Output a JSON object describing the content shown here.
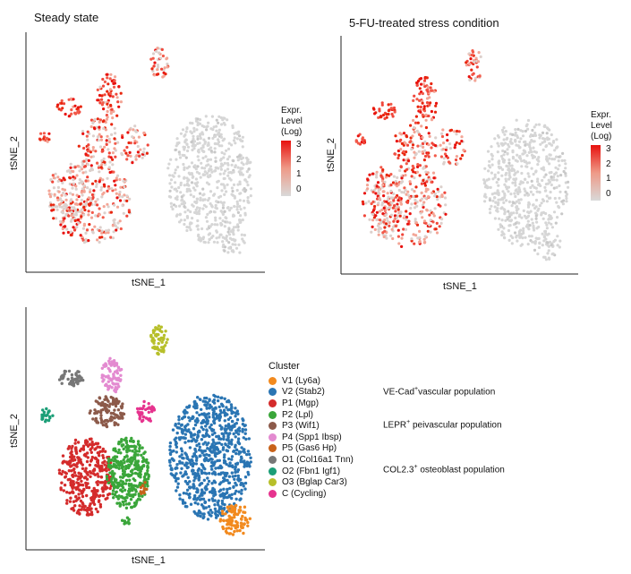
{
  "panels": {
    "steady": {
      "title": "Steady state",
      "xlabel": "tSNE_1",
      "ylabel": "tSNE_2"
    },
    "stress": {
      "title": "5-FU-treated stress condition",
      "xlabel": "tSNE_1",
      "ylabel": "tSNE_2"
    },
    "clusters": {
      "xlabel": "tSNE_1",
      "ylabel": "tSNE_2"
    }
  },
  "expr_legend": {
    "title_lines": [
      "Expr.",
      "Level",
      "(Log)"
    ],
    "ticks": [
      "3",
      "2",
      "1",
      "0"
    ],
    "colors": {
      "high": "#e8110e",
      "low": "#d9d9d9"
    }
  },
  "cluster_legend": {
    "title": "Cluster",
    "items": [
      {
        "label": "V1 (Ly6a)",
        "color": "#f28a1e"
      },
      {
        "label": "V2 (Stab2)",
        "color": "#2a75b3"
      },
      {
        "label": "P1 (Mgp)",
        "color": "#d42b2b"
      },
      {
        "label": "P2 (Lpl)",
        "color": "#3aa63a"
      },
      {
        "label": "P3 (Wif1)",
        "color": "#8c5a4a"
      },
      {
        "label": "P4 (Spp1 Ibsp)",
        "color": "#e38ad0"
      },
      {
        "label": "P5 (Gas6 Hp)",
        "color": "#c8621a"
      },
      {
        "label": "O1 (Col16a1 Tnn)",
        "color": "#777777"
      },
      {
        "label": "O2 (Fbn1 Igf1)",
        "color": "#1b9e77"
      },
      {
        "label": "O3 (Bglap Car3)",
        "color": "#b7bf2a"
      },
      {
        "label": "C (Cycling)",
        "color": "#e6338e"
      }
    ]
  },
  "population_labels": [
    {
      "main": "VE-Cad",
      "sup": "+",
      "rest": "vascular population"
    },
    {
      "main": "LEPR",
      "sup": "+",
      "rest": " peivascular population"
    },
    {
      "main": "COL2.3",
      "sup": "+",
      "rest": " osteoblast population"
    }
  ],
  "chart_data": [
    {
      "type": "scatter",
      "title": "Steady state",
      "xlabel": "tSNE_1",
      "ylabel": "tSNE_2",
      "color_scale": {
        "name": "Expr. Level (Log)",
        "range": [
          0,
          3
        ]
      }
    },
    {
      "type": "scatter",
      "title": "5-FU-treated stress condition",
      "xlabel": "tSNE_1",
      "ylabel": "tSNE_2",
      "color_scale": {
        "name": "Expr. Level (Log)",
        "range": [
          0,
          3
        ]
      }
    },
    {
      "type": "scatter",
      "xlabel": "tSNE_1",
      "ylabel": "tSNE_2",
      "legend": "right",
      "series": [
        {
          "name": "V1 (Ly6a)"
        },
        {
          "name": "V2 (Stab2)"
        },
        {
          "name": "P1 (Mgp)"
        },
        {
          "name": "P2 (Lpl)"
        },
        {
          "name": "P3 (Wif1)"
        },
        {
          "name": "P4 (Spp1 Ibsp)"
        },
        {
          "name": "P5 (Gas6 Hp)"
        },
        {
          "name": "O1 (Col16a1 Tnn)"
        },
        {
          "name": "O2 (Fbn1 Igf1)"
        },
        {
          "name": "O3 (Bglap Car3)"
        },
        {
          "name": "C (Cycling)"
        }
      ]
    }
  ]
}
